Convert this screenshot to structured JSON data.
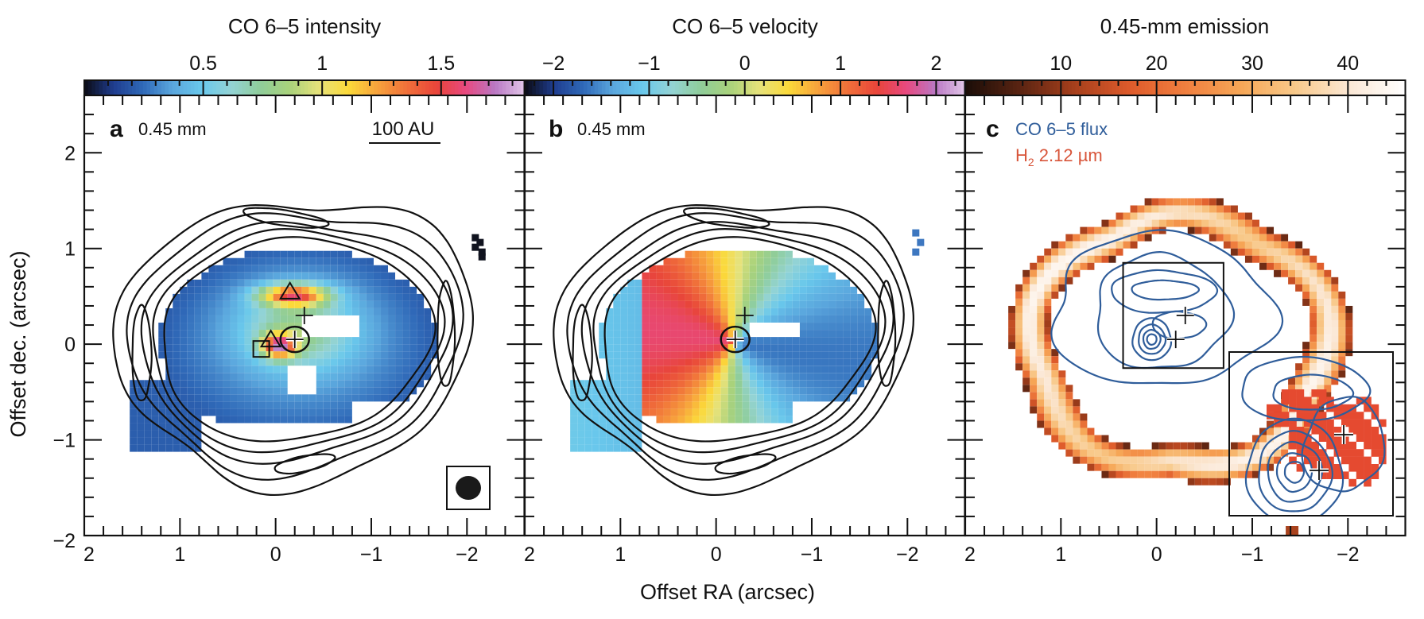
{
  "figure": {
    "xlabel": "Offset RA (arcsec)",
    "ylabel": "Offset dec. (arcsec)"
  },
  "chart_data": [
    {
      "type": "heatmap",
      "panel": "a",
      "panel_label": "a",
      "contour_label": "0.45 mm",
      "scale_bar_label": "100 AU",
      "scale_bar_length_au": 100,
      "colorbar": {
        "title": "CO 6–5 intensity",
        "range": [
          0.0,
          1.85
        ],
        "ticks": [
          0.5,
          1,
          1.5
        ],
        "tick_labels": [
          "0.5",
          "1",
          "1.5"
        ],
        "minor_step": 0.1,
        "colors": [
          "#0b0b14",
          "#1f3d8f",
          "#2f69b8",
          "#5aa6dd",
          "#69c8ec",
          "#93d3d5",
          "#8fcd9a",
          "#a9d27b",
          "#e6e27a",
          "#fbd93a",
          "#f7a23c",
          "#f0703a",
          "#e8453a",
          "#e8497f",
          "#b978c4",
          "#e2c6e8"
        ]
      },
      "xlim": [
        2,
        -2.6
      ],
      "ylim": [
        -2,
        2.6
      ],
      "xticks": [
        2,
        1,
        0,
        -1,
        -2
      ],
      "xtick_labels": [
        "2",
        "1",
        "0",
        "−1",
        "−2"
      ],
      "yticks": [
        2,
        1,
        0,
        -1,
        -2
      ],
      "ytick_labels": [
        "2",
        "1",
        "0",
        "−1",
        "−2"
      ],
      "markers": [
        {
          "type": "triangle",
          "x": -0.15,
          "y": 0.55
        },
        {
          "type": "triangle",
          "x": 0.05,
          "y": 0.05
        },
        {
          "type": "square",
          "x": 0.15,
          "y": -0.05
        },
        {
          "type": "plus-circled",
          "x": -0.2,
          "y": 0.05
        },
        {
          "type": "plus",
          "x": -0.3,
          "y": 0.3
        }
      ],
      "beam": {
        "major_arcsec": 0.24,
        "minor_arcsec": 0.22
      }
    },
    {
      "type": "heatmap",
      "panel": "b",
      "panel_label": "b",
      "contour_label": "0.45 mm",
      "colorbar": {
        "title": "CO 6–5 velocity",
        "range": [
          -2.3,
          2.3
        ],
        "ticks": [
          -2,
          -1,
          0,
          1,
          2
        ],
        "tick_labels": [
          "−2",
          "−1",
          "0",
          "1",
          "2"
        ],
        "minor_step": 0.2,
        "colors": [
          "#0b0b14",
          "#1f3d8f",
          "#2f69b8",
          "#5aa6dd",
          "#69c8ec",
          "#93d3d5",
          "#8fcd9a",
          "#a9d27b",
          "#e6e27a",
          "#fbd93a",
          "#f7a23c",
          "#f0703a",
          "#e8453a",
          "#e8497f",
          "#b978c4",
          "#e2c6e8"
        ]
      },
      "xlim": [
        2,
        -2.6
      ],
      "ylim": [
        -2,
        2.6
      ],
      "xticks": [
        2,
        1,
        0,
        -1,
        -2
      ],
      "xtick_labels": [
        "2",
        "1",
        "0",
        "−1",
        "−2"
      ],
      "markers": [
        {
          "type": "plus-circled",
          "x": -0.2,
          "y": 0.05
        },
        {
          "type": "plus",
          "x": -0.3,
          "y": 0.3
        }
      ]
    },
    {
      "type": "heatmap",
      "panel": "c",
      "panel_label": "c",
      "legend": [
        {
          "label": "CO 6–5 flux",
          "color": "#2f5d9a"
        },
        {
          "label": "H2 2.12 µm",
          "color": "#e0553a"
        }
      ],
      "colorbar": {
        "title": "0.45-mm emission",
        "range": [
          0,
          46
        ],
        "ticks": [
          10,
          20,
          30,
          40
        ],
        "tick_labels": [
          "10",
          "20",
          "30",
          "40"
        ],
        "minor_step": 2,
        "colors": [
          "#1a0d08",
          "#5a2412",
          "#a8401c",
          "#de5b2b",
          "#f07f3f",
          "#f6a656",
          "#f8c98a",
          "#fbe8d6",
          "#ffffff"
        ]
      },
      "xlim": [
        2,
        -2.6
      ],
      "ylim": [
        -2,
        2.6
      ],
      "xticks": [
        2,
        1,
        0,
        -1,
        -2
      ],
      "xtick_labels": [
        "2",
        "1",
        "0",
        "−1",
        "−2"
      ],
      "markers": [
        {
          "type": "plus",
          "x": -0.2,
          "y": 0.05
        },
        {
          "type": "plus",
          "x": -0.3,
          "y": 0.3
        }
      ],
      "zoom_box": {
        "x_range": [
          0.35,
          -0.7
        ],
        "y_range": [
          -0.25,
          0.85
        ]
      }
    }
  ]
}
